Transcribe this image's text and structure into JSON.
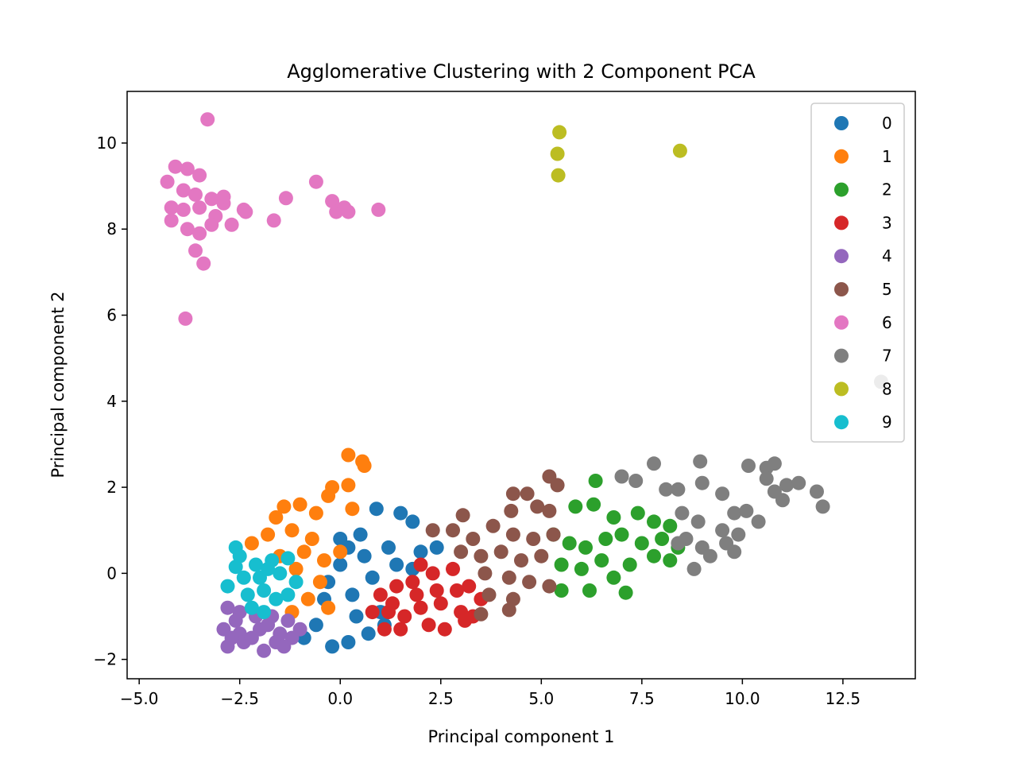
{
  "chart_data": {
    "type": "scatter",
    "title": "Agglomerative Clustering with 2 Component PCA",
    "xlabel": "Principal component 1",
    "ylabel": "Principal component 2",
    "xlim": [
      -5.3,
      14.3
    ],
    "ylim": [
      -2.45,
      11.2
    ],
    "xticks": [
      -5.0,
      -2.5,
      0.0,
      2.5,
      5.0,
      7.5,
      10.0,
      12.5
    ],
    "xtick_labels": [
      "−5.0",
      "−2.5",
      "0.0",
      "2.5",
      "5.0",
      "7.5",
      "10.0",
      "12.5"
    ],
    "yticks": [
      -2,
      0,
      2,
      4,
      6,
      8,
      10
    ],
    "ytick_labels": [
      "−2",
      "0",
      "2",
      "4",
      "6",
      "8",
      "10"
    ],
    "grid": false,
    "legend_position": "top-right",
    "series": [
      {
        "name": "0",
        "color": "#1f77b4",
        "points": [
          [
            0.9,
            1.5
          ],
          [
            1.5,
            1.4
          ],
          [
            1.8,
            1.2
          ],
          [
            2.4,
            0.6
          ],
          [
            0.0,
            0.8
          ],
          [
            0.5,
            0.9
          ],
          [
            1.2,
            0.6
          ],
          [
            -0.3,
            -0.2
          ],
          [
            0.3,
            -0.5
          ],
          [
            0.8,
            -0.1
          ],
          [
            1.4,
            0.2
          ],
          [
            -0.6,
            -1.2
          ],
          [
            -0.2,
            -1.7
          ],
          [
            0.2,
            -1.6
          ],
          [
            0.7,
            -1.4
          ],
          [
            1.0,
            -0.9
          ],
          [
            -0.9,
            -1.5
          ],
          [
            0.0,
            0.2
          ],
          [
            0.6,
            0.4
          ],
          [
            1.8,
            0.1
          ],
          [
            2.0,
            0.5
          ],
          [
            -0.4,
            -0.6
          ],
          [
            0.4,
            -1.0
          ],
          [
            1.1,
            -1.2
          ],
          [
            0.2,
            0.6
          ]
        ]
      },
      {
        "name": "1",
        "color": "#ff7f0e",
        "points": [
          [
            0.2,
            2.75
          ],
          [
            0.55,
            2.6
          ],
          [
            0.6,
            2.5
          ],
          [
            -0.2,
            2.0
          ],
          [
            0.2,
            2.05
          ],
          [
            -0.3,
            1.8
          ],
          [
            -1.4,
            1.55
          ],
          [
            -1.0,
            1.6
          ],
          [
            -0.6,
            1.4
          ],
          [
            0.3,
            1.5
          ],
          [
            -1.8,
            0.9
          ],
          [
            -1.2,
            1.0
          ],
          [
            -0.7,
            0.8
          ],
          [
            -2.2,
            0.7
          ],
          [
            -1.5,
            0.4
          ],
          [
            -0.9,
            0.5
          ],
          [
            -0.4,
            0.3
          ],
          [
            -1.1,
            0.1
          ],
          [
            -0.5,
            -0.2
          ],
          [
            -0.8,
            -0.6
          ],
          [
            -0.3,
            -0.8
          ],
          [
            -1.2,
            -0.9
          ],
          [
            0.0,
            0.5
          ],
          [
            -1.6,
            1.3
          ]
        ]
      },
      {
        "name": "2",
        "color": "#2ca02c",
        "points": [
          [
            6.35,
            2.15
          ],
          [
            5.85,
            1.55
          ],
          [
            6.3,
            1.6
          ],
          [
            6.8,
            1.3
          ],
          [
            7.4,
            1.4
          ],
          [
            7.8,
            1.2
          ],
          [
            8.2,
            1.1
          ],
          [
            5.3,
            0.9
          ],
          [
            5.7,
            0.7
          ],
          [
            6.1,
            0.6
          ],
          [
            6.6,
            0.8
          ],
          [
            7.0,
            0.9
          ],
          [
            7.5,
            0.7
          ],
          [
            8.0,
            0.8
          ],
          [
            8.4,
            0.6
          ],
          [
            5.5,
            0.2
          ],
          [
            6.0,
            0.1
          ],
          [
            6.5,
            0.3
          ],
          [
            7.2,
            0.2
          ],
          [
            7.8,
            0.4
          ],
          [
            5.5,
            -0.4
          ],
          [
            6.2,
            -0.4
          ],
          [
            7.1,
            -0.45
          ],
          [
            6.8,
            -0.1
          ],
          [
            8.2,
            0.3
          ]
        ]
      },
      {
        "name": "3",
        "color": "#d62728",
        "points": [
          [
            1.0,
            -0.5
          ],
          [
            1.4,
            -0.3
          ],
          [
            1.8,
            -0.2
          ],
          [
            2.3,
            0.0
          ],
          [
            2.8,
            0.1
          ],
          [
            3.2,
            -0.3
          ],
          [
            3.5,
            -0.6
          ],
          [
            1.2,
            -0.9
          ],
          [
            1.6,
            -1.0
          ],
          [
            2.0,
            -0.8
          ],
          [
            2.5,
            -0.7
          ],
          [
            3.0,
            -0.9
          ],
          [
            1.1,
            -1.3
          ],
          [
            1.5,
            -1.3
          ],
          [
            2.2,
            -1.2
          ],
          [
            2.6,
            -1.3
          ],
          [
            3.1,
            -1.1
          ],
          [
            0.8,
            -0.9
          ],
          [
            1.9,
            -0.5
          ],
          [
            2.9,
            -0.4
          ],
          [
            2.4,
            -0.4
          ],
          [
            1.3,
            -0.7
          ],
          [
            2.0,
            0.2
          ],
          [
            3.3,
            -1.0
          ]
        ]
      },
      {
        "name": "4",
        "color": "#9467bd",
        "points": [
          [
            -2.8,
            -0.8
          ],
          [
            -2.5,
            -0.9
          ],
          [
            -2.1,
            -1.0
          ],
          [
            -1.7,
            -1.0
          ],
          [
            -1.3,
            -1.1
          ],
          [
            -2.9,
            -1.3
          ],
          [
            -2.5,
            -1.4
          ],
          [
            -2.0,
            -1.3
          ],
          [
            -1.5,
            -1.4
          ],
          [
            -1.0,
            -1.3
          ],
          [
            -2.8,
            -1.7
          ],
          [
            -2.4,
            -1.6
          ],
          [
            -1.9,
            -1.8
          ],
          [
            -1.6,
            -1.6
          ],
          [
            -1.2,
            -1.5
          ],
          [
            -2.6,
            -1.1
          ],
          [
            -2.2,
            -1.5
          ],
          [
            -1.8,
            -1.2
          ],
          [
            -1.4,
            -1.7
          ],
          [
            -2.7,
            -1.5
          ]
        ]
      },
      {
        "name": "5",
        "color": "#8c564b",
        "points": [
          [
            5.2,
            2.25
          ],
          [
            5.4,
            2.05
          ],
          [
            4.3,
            1.85
          ],
          [
            4.65,
            1.85
          ],
          [
            3.05,
            1.35
          ],
          [
            4.9,
            1.55
          ],
          [
            5.2,
            1.45
          ],
          [
            4.25,
            1.45
          ],
          [
            2.3,
            1.0
          ],
          [
            2.8,
            1.0
          ],
          [
            3.3,
            0.8
          ],
          [
            3.8,
            1.1
          ],
          [
            4.3,
            0.9
          ],
          [
            4.8,
            0.8
          ],
          [
            5.3,
            0.9
          ],
          [
            3.0,
            0.5
          ],
          [
            3.5,
            0.4
          ],
          [
            4.0,
            0.5
          ],
          [
            4.5,
            0.3
          ],
          [
            5.0,
            0.4
          ],
          [
            3.6,
            0.0
          ],
          [
            4.2,
            -0.1
          ],
          [
            4.7,
            -0.2
          ],
          [
            5.2,
            -0.3
          ],
          [
            3.7,
            -0.5
          ],
          [
            4.3,
            -0.6
          ],
          [
            3.5,
            -0.95
          ],
          [
            4.2,
            -0.85
          ]
        ]
      },
      {
        "name": "6",
        "color": "#e377c2",
        "points": [
          [
            -3.3,
            10.55
          ],
          [
            -4.1,
            9.45
          ],
          [
            -3.8,
            9.4
          ],
          [
            -3.5,
            9.25
          ],
          [
            -4.3,
            9.1
          ],
          [
            -3.9,
            8.9
          ],
          [
            -3.6,
            8.8
          ],
          [
            -3.2,
            8.7
          ],
          [
            -2.9,
            8.6
          ],
          [
            -4.2,
            8.5
          ],
          [
            -3.9,
            8.45
          ],
          [
            -3.5,
            8.5
          ],
          [
            -3.1,
            8.3
          ],
          [
            -4.2,
            8.2
          ],
          [
            -3.8,
            8.0
          ],
          [
            -3.5,
            7.9
          ],
          [
            -3.2,
            8.1
          ],
          [
            -3.6,
            7.5
          ],
          [
            -3.4,
            7.2
          ],
          [
            -3.85,
            5.92
          ],
          [
            -2.9,
            8.75
          ],
          [
            -2.4,
            8.45
          ],
          [
            -2.7,
            8.1
          ],
          [
            -1.65,
            8.2
          ],
          [
            -1.35,
            8.72
          ],
          [
            -0.6,
            9.1
          ],
          [
            -0.2,
            8.65
          ],
          [
            -0.1,
            8.4
          ],
          [
            0.1,
            8.5
          ],
          [
            0.2,
            8.4
          ],
          [
            0.95,
            8.45
          ],
          [
            -2.35,
            8.4
          ]
        ]
      },
      {
        "name": "7",
        "color": "#7f7f7f",
        "points": [
          [
            8.95,
            2.6
          ],
          [
            10.15,
            2.5
          ],
          [
            10.6,
            2.45
          ],
          [
            10.8,
            2.55
          ],
          [
            7.8,
            2.55
          ],
          [
            7.0,
            2.25
          ],
          [
            7.35,
            2.15
          ],
          [
            8.1,
            1.95
          ],
          [
            8.4,
            1.95
          ],
          [
            9.0,
            2.1
          ],
          [
            9.5,
            1.85
          ],
          [
            10.6,
            2.2
          ],
          [
            11.1,
            2.05
          ],
          [
            11.4,
            2.1
          ],
          [
            10.8,
            1.9
          ],
          [
            11.0,
            1.7
          ],
          [
            11.85,
            1.9
          ],
          [
            12.0,
            1.55
          ],
          [
            9.8,
            1.4
          ],
          [
            10.1,
            1.45
          ],
          [
            8.5,
            1.4
          ],
          [
            8.9,
            1.2
          ],
          [
            9.5,
            1.0
          ],
          [
            9.9,
            0.9
          ],
          [
            10.4,
            1.2
          ],
          [
            8.6,
            0.8
          ],
          [
            9.0,
            0.6
          ],
          [
            9.6,
            0.7
          ],
          [
            8.4,
            0.7
          ],
          [
            9.2,
            0.4
          ],
          [
            9.8,
            0.5
          ],
          [
            8.8,
            0.1
          ],
          [
            13.45,
            4.45
          ]
        ]
      },
      {
        "name": "8",
        "color": "#bcbd22",
        "points": [
          [
            5.45,
            10.25
          ],
          [
            5.4,
            9.75
          ],
          [
            5.42,
            9.25
          ],
          [
            8.45,
            9.82
          ]
        ]
      },
      {
        "name": "9",
        "color": "#17becf",
        "points": [
          [
            -2.6,
            0.6
          ],
          [
            -2.5,
            0.4
          ],
          [
            -2.8,
            -0.3
          ],
          [
            -2.4,
            -0.1
          ],
          [
            -2.1,
            0.2
          ],
          [
            -1.7,
            0.3
          ],
          [
            -1.3,
            0.35
          ],
          [
            -1.5,
            0.0
          ],
          [
            -1.1,
            -0.2
          ],
          [
            -2.3,
            -0.5
          ],
          [
            -1.9,
            -0.4
          ],
          [
            -1.6,
            -0.6
          ],
          [
            -1.9,
            -0.9
          ],
          [
            -2.2,
            -0.8
          ],
          [
            -1.3,
            -0.5
          ],
          [
            -2.6,
            0.15
          ],
          [
            -2.0,
            -0.1
          ],
          [
            -1.8,
            0.1
          ]
        ]
      }
    ]
  }
}
